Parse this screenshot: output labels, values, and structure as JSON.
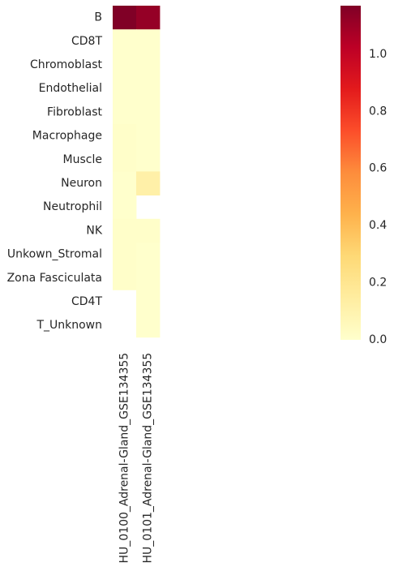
{
  "chart_data": {
    "type": "heatmap",
    "title": "",
    "xlabel": "",
    "ylabel": "",
    "rows": [
      "B",
      "CD8T",
      "Chromoblast",
      "Endothelial",
      "Fibroblast",
      "Macrophage",
      "Muscle",
      "Neuron",
      "Neutrophil",
      "NK",
      "Unkown_Stromal",
      "Zona Fasciculata",
      "CD4T",
      "T_Unknown"
    ],
    "columns": [
      "HU_0100_Adrenal-Gland_GSE134355",
      "HU_0101_Adrenal-Gland_GSE134355"
    ],
    "values": [
      [
        1.17,
        1.12
      ],
      [
        0.0,
        0.0
      ],
      [
        0.0,
        0.0
      ],
      [
        0.0,
        0.0
      ],
      [
        0.0,
        0.0
      ],
      [
        0.01,
        0.0
      ],
      [
        0.01,
        0.0
      ],
      [
        0.0,
        0.12
      ],
      [
        0.0,
        null
      ],
      [
        0.01,
        0.01
      ],
      [
        0.01,
        0.0
      ],
      [
        0.01,
        0.0
      ],
      [
        null,
        0.0
      ],
      [
        null,
        0.0
      ]
    ],
    "colorbar": {
      "colormap": "YlOrRd",
      "min": 0.0,
      "max": 1.17,
      "ticks": [
        0.0,
        0.2,
        0.4,
        0.6,
        0.8,
        1.0
      ],
      "tick_labels": [
        "0.0",
        "0.2",
        "0.4",
        "0.6",
        "0.8",
        "1.0"
      ]
    },
    "missing_color": "#ffffff",
    "grid": false,
    "legend": "colorbar-right"
  }
}
